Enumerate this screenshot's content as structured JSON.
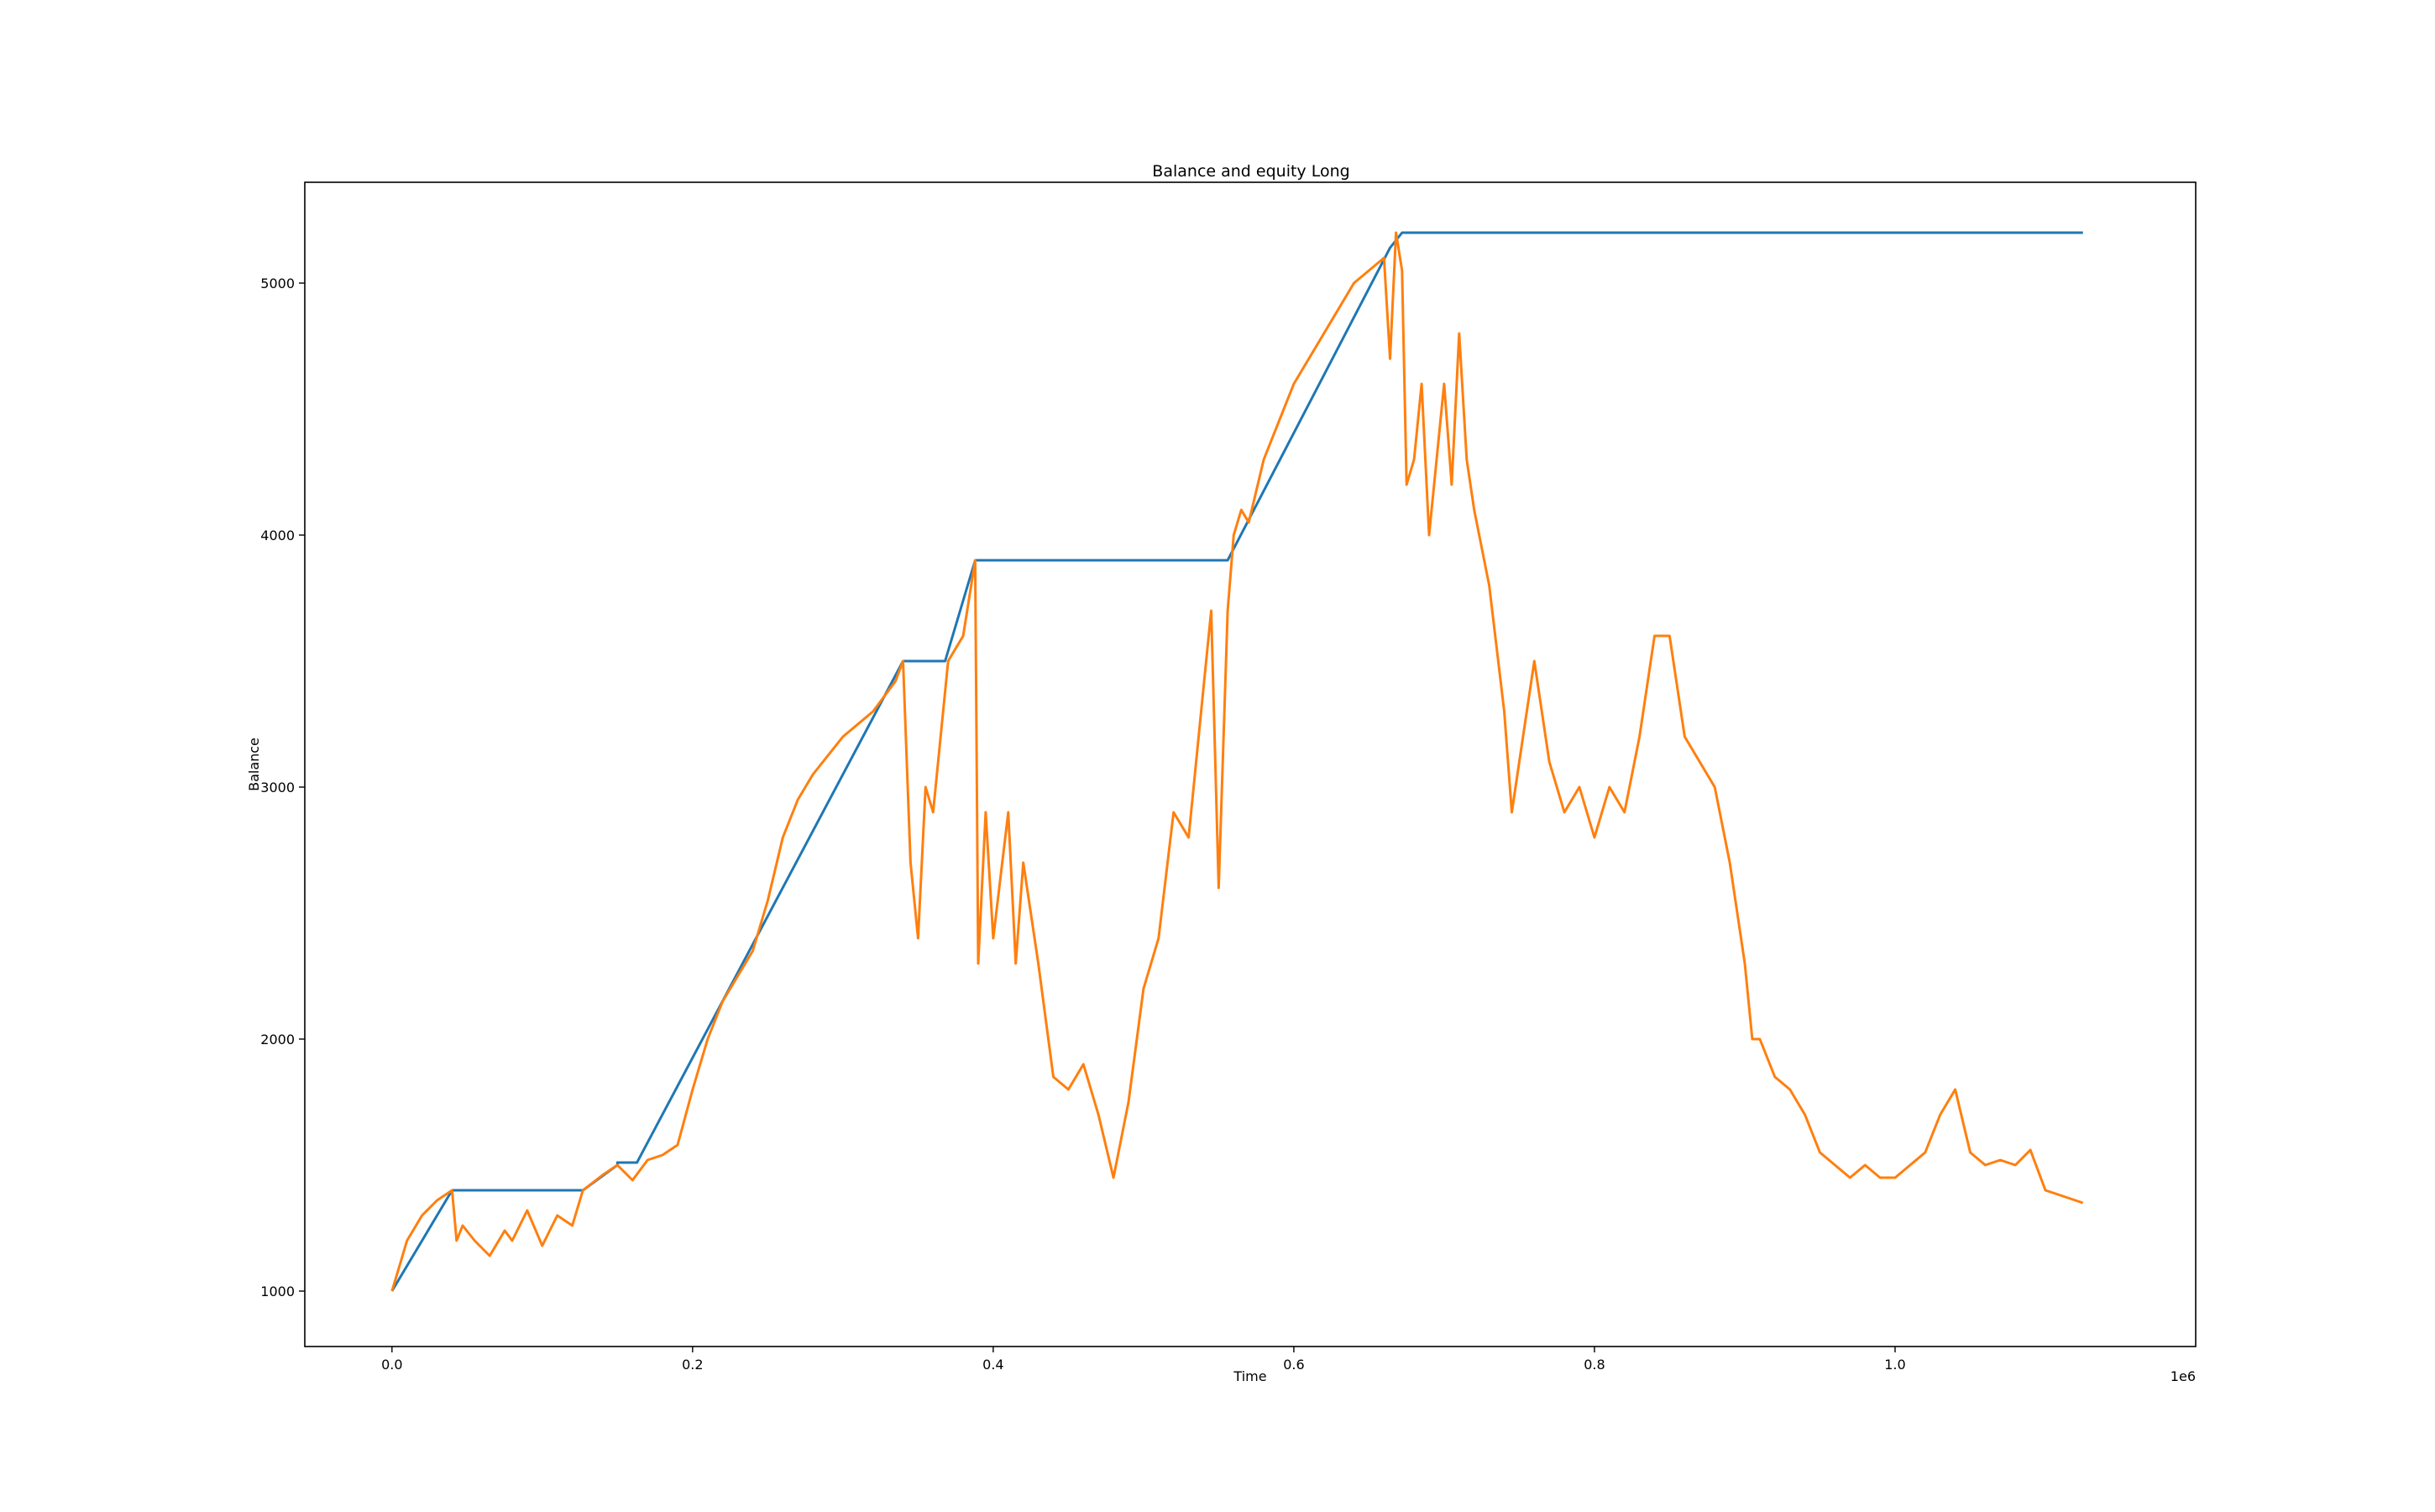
{
  "chart_data": {
    "type": "line",
    "title": "Balance and equity Long",
    "xlabel": "Time",
    "ylabel": "Balance",
    "x_offset_label": "1e6",
    "xlim": [
      -0.058,
      1.2
    ],
    "ylim": [
      780,
      5400
    ],
    "xticks": [
      0.0,
      0.2,
      0.4,
      0.6,
      0.8,
      1.0
    ],
    "xtick_labels": [
      "0.0",
      "0.2",
      "0.4",
      "0.6",
      "0.8",
      "1.0"
    ],
    "yticks": [
      1000,
      2000,
      3000,
      4000,
      5000
    ],
    "ytick_labels": [
      "1000",
      "2000",
      "3000",
      "4000",
      "5000"
    ],
    "grid": false,
    "legend": "none",
    "series": [
      {
        "color": "#1f77b4",
        "x": [
          0.0,
          0.04,
          0.04,
          0.127,
          0.127,
          0.15,
          0.15,
          0.163,
          0.163,
          0.34,
          0.34,
          0.368,
          0.368,
          0.388,
          0.388,
          0.556,
          0.556,
          0.664,
          0.664,
          0.672,
          0.672,
          1.125
        ],
        "y": [
          1000,
          1400,
          1400,
          1400,
          1400,
          1500,
          1510,
          1510,
          1510,
          3500,
          3500,
          3500,
          3500,
          3900,
          3900,
          3900,
          3900,
          5140,
          5140,
          5200,
          5200,
          5200
        ]
      },
      {
        "color": "#ff7f0e",
        "x": [
          0.0,
          0.005,
          0.01,
          0.02,
          0.03,
          0.04,
          0.043,
          0.047,
          0.055,
          0.065,
          0.075,
          0.08,
          0.09,
          0.1,
          0.11,
          0.12,
          0.127,
          0.14,
          0.15,
          0.16,
          0.17,
          0.18,
          0.19,
          0.2,
          0.21,
          0.22,
          0.23,
          0.24,
          0.25,
          0.26,
          0.27,
          0.28,
          0.3,
          0.32,
          0.335,
          0.34,
          0.345,
          0.35,
          0.355,
          0.36,
          0.37,
          0.38,
          0.388,
          0.39,
          0.395,
          0.4,
          0.41,
          0.415,
          0.42,
          0.43,
          0.44,
          0.45,
          0.46,
          0.47,
          0.48,
          0.49,
          0.5,
          0.51,
          0.52,
          0.53,
          0.54,
          0.545,
          0.55,
          0.556,
          0.56,
          0.565,
          0.57,
          0.58,
          0.6,
          0.62,
          0.64,
          0.66,
          0.664,
          0.668,
          0.672,
          0.675,
          0.68,
          0.685,
          0.69,
          0.7,
          0.705,
          0.71,
          0.715,
          0.72,
          0.73,
          0.74,
          0.745,
          0.75,
          0.76,
          0.77,
          0.78,
          0.79,
          0.8,
          0.81,
          0.82,
          0.83,
          0.84,
          0.85,
          0.86,
          0.87,
          0.88,
          0.89,
          0.9,
          0.905,
          0.91,
          0.92,
          0.93,
          0.94,
          0.95,
          0.96,
          0.97,
          0.98,
          0.99,
          1.0,
          1.01,
          1.02,
          1.03,
          1.04,
          1.05,
          1.06,
          1.07,
          1.08,
          1.09,
          1.1,
          1.11,
          1.125
        ],
        "y": [
          1000,
          1100,
          1200,
          1300,
          1360,
          1400,
          1200,
          1260,
          1200,
          1140,
          1240,
          1200,
          1320,
          1180,
          1300,
          1260,
          1400,
          1460,
          1500,
          1440,
          1520,
          1540,
          1580,
          1800,
          2000,
          2150,
          2250,
          2350,
          2550,
          2800,
          2950,
          3050,
          3200,
          3300,
          3420,
          3500,
          2700,
          2400,
          3000,
          2900,
          3500,
          3600,
          3900,
          2300,
          2900,
          2400,
          2900,
          2300,
          2700,
          2300,
          1850,
          1800,
          1900,
          1700,
          1450,
          1750,
          2200,
          2400,
          2900,
          2800,
          3400,
          3700,
          2600,
          3700,
          4000,
          4100,
          4050,
          4300,
          4600,
          4800,
          5000,
          5100,
          4700,
          5200,
          5050,
          4200,
          4300,
          4600,
          4000,
          4600,
          4200,
          4800,
          4300,
          4100,
          3800,
          3300,
          2900,
          3100,
          3500,
          3100,
          2900,
          3000,
          2800,
          3000,
          2900,
          3200,
          3600,
          3600,
          3200,
          3100,
          3000,
          2700,
          2300,
          2000,
          2000,
          1850,
          1800,
          1700,
          1550,
          1500,
          1450,
          1500,
          1450,
          1450,
          1500,
          1550,
          1700,
          1800,
          1550,
          1500,
          1520,
          1500,
          1560,
          1400,
          1380,
          1350
        ]
      }
    ]
  }
}
